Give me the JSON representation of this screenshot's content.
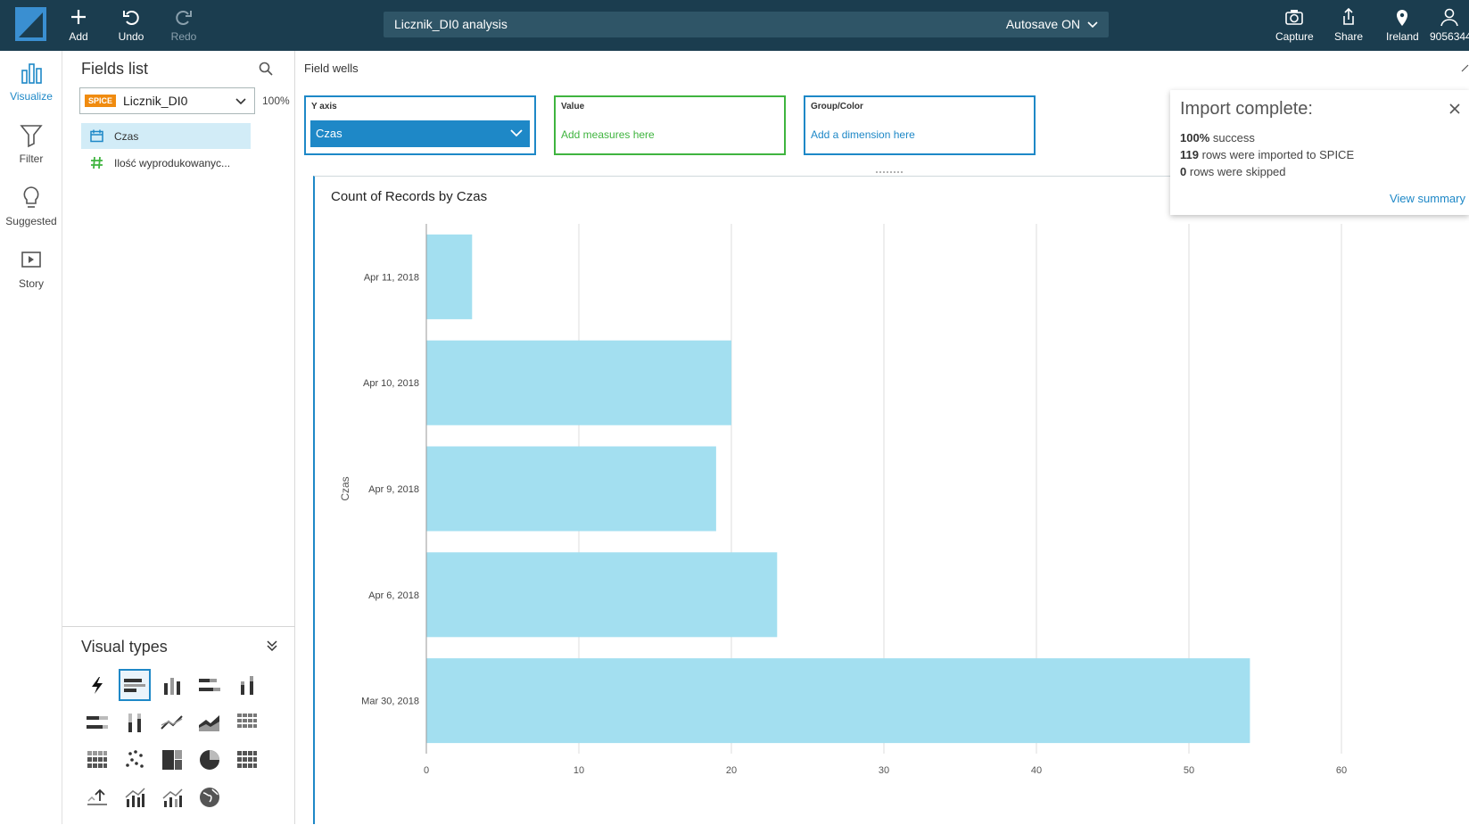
{
  "topbar": {
    "add_label": "Add",
    "undo_label": "Undo",
    "redo_label": "Redo",
    "analysis_title": "Licznik_DI0 analysis",
    "autosave_label": "Autosave ON",
    "capture_label": "Capture",
    "share_label": "Share",
    "region_label": "Ireland",
    "account_label": "9056344"
  },
  "leftnav": {
    "visualize": "Visualize",
    "filter": "Filter",
    "suggested": "Suggested",
    "story": "Story"
  },
  "fields_panel": {
    "title": "Fields list",
    "spice_badge": "SPICE",
    "dataset": "Licznik_DI0",
    "spice_usage": "100%",
    "fields": [
      {
        "name": "Czas",
        "type": "date",
        "selected": true
      },
      {
        "name": "Ilość wyprodukowanyc...",
        "type": "measure",
        "selected": false
      }
    ],
    "visual_types_title": "Visual types"
  },
  "field_wells": {
    "label": "Field wells",
    "y_axis": {
      "label": "Y axis",
      "value": "Czas"
    },
    "value": {
      "label": "Value",
      "placeholder": "Add measures here"
    },
    "group_color": {
      "label": "Group/Color",
      "placeholder": "Add a dimension here"
    }
  },
  "toast": {
    "title": "Import complete:",
    "success_value": "100%",
    "success_text": "success",
    "imported_value": "119",
    "imported_text": "rows were imported to SPICE",
    "skipped_value": "0",
    "skipped_text": "rows were skipped",
    "view_summary": "View summary"
  },
  "colors": {
    "topbar": "#1b3d4f",
    "accent": "#1e88c7",
    "bar": "#a3dff0",
    "value_well": "#3fb43f",
    "spice": "#f08b0f"
  },
  "chart_data": {
    "type": "bar",
    "orientation": "horizontal",
    "title": "Count of Records by Czas",
    "ylabel": "Czas",
    "xlabel": "",
    "categories": [
      "Apr 11, 2018",
      "Apr 10, 2018",
      "Apr 9, 2018",
      "Apr 6, 2018",
      "Mar 30, 2018"
    ],
    "values": [
      3,
      20,
      19,
      23,
      54
    ],
    "xlim": [
      0,
      60
    ],
    "xticks": [
      0,
      10,
      20,
      30,
      40,
      50,
      60
    ],
    "grid": true
  }
}
